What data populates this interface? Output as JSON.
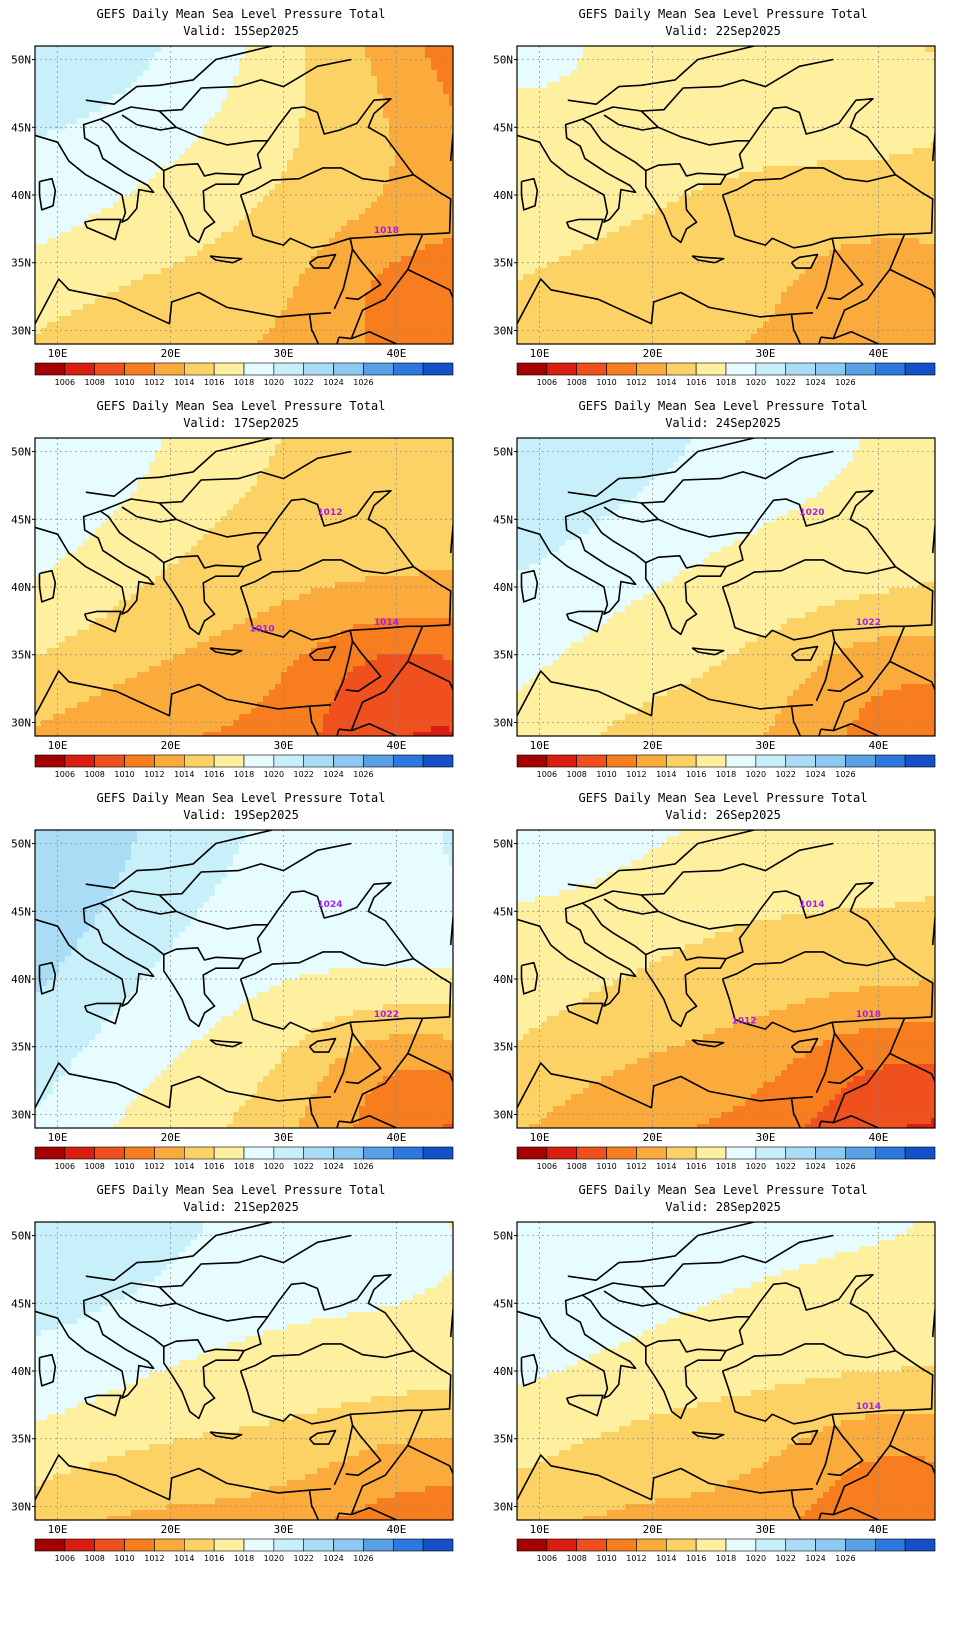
{
  "title": "GEFS Daily Mean Sea Level Pressure Total",
  "valid_prefix": "Valid:",
  "colors": {
    "levels": [
      "#a50000",
      "#d81e10",
      "#f0501e",
      "#f77d1e",
      "#fbaa3c",
      "#fdd264",
      "#fff0a0",
      "#e6fcff",
      "#c8f0fa",
      "#aadcf5",
      "#8cc8f0",
      "#5aa0e6",
      "#2d78dc",
      "#1450c8"
    ],
    "contour": "#a020f0",
    "grid": "#888888",
    "coast": "#000000"
  },
  "colorbar_ticks": [
    "1006",
    "1008",
    "1010",
    "1012",
    "1014",
    "1016",
    "1018",
    "1020",
    "1022",
    "1024",
    "1026"
  ],
  "lon_labels": [
    "10E",
    "20E",
    "30E",
    "40E"
  ],
  "lat_labels": [
    "50N",
    "45N",
    "40N",
    "35N",
    "30N"
  ],
  "panels": [
    {
      "valid": "15Sep2025",
      "pressure_labels": [
        "1018"
      ]
    },
    {
      "valid": "22Sep2025",
      "pressure_labels": []
    },
    {
      "valid": "17Sep2025",
      "pressure_labels": [
        "1014",
        "1012",
        "1010"
      ]
    },
    {
      "valid": "24Sep2025",
      "pressure_labels": [
        "1022",
        "1020"
      ]
    },
    {
      "valid": "19Sep2025",
      "pressure_labels": [
        "1022",
        "1024"
      ]
    },
    {
      "valid": "26Sep2025",
      "pressure_labels": [
        "1018",
        "1014",
        "1012"
      ]
    },
    {
      "valid": "21Sep2025",
      "pressure_labels": []
    },
    {
      "valid": "28Sep2025",
      "pressure_labels": [
        "1014"
      ]
    }
  ],
  "fields": [
    {
      "base": 1017,
      "n": [
        4,
        -6
      ],
      "s": [
        -1,
        -5
      ],
      "e": [
        2,
        -2
      ]
    },
    {
      "base": 1017,
      "n": [
        1,
        -1
      ],
      "s": [
        -2,
        -4
      ],
      "e": [
        0,
        -2
      ]
    },
    {
      "base": 1016,
      "n": [
        4,
        -1
      ],
      "s": [
        -2,
        -7
      ],
      "e": [
        -1,
        -3
      ]
    },
    {
      "base": 1017.5,
      "n": [
        4,
        0
      ],
      "s": [
        0,
        -6
      ],
      "e": [
        0,
        -2
      ]
    },
    {
      "base": 1020,
      "n": [
        4,
        0
      ],
      "s": [
        0,
        -9
      ],
      "e": [
        -2,
        -3
      ]
    },
    {
      "base": 1015.5,
      "n": [
        3,
        1
      ],
      "s": [
        -1,
        -7
      ],
      "e": [
        0,
        -2
      ]
    },
    {
      "base": 1019,
      "n": [
        2,
        -1
      ],
      "s": [
        -4,
        -8
      ],
      "e": [
        0,
        -1
      ]
    },
    {
      "base": 1017,
      "n": [
        3,
        1
      ],
      "s": [
        -2,
        -6
      ],
      "e": [
        0,
        -2
      ]
    }
  ]
}
